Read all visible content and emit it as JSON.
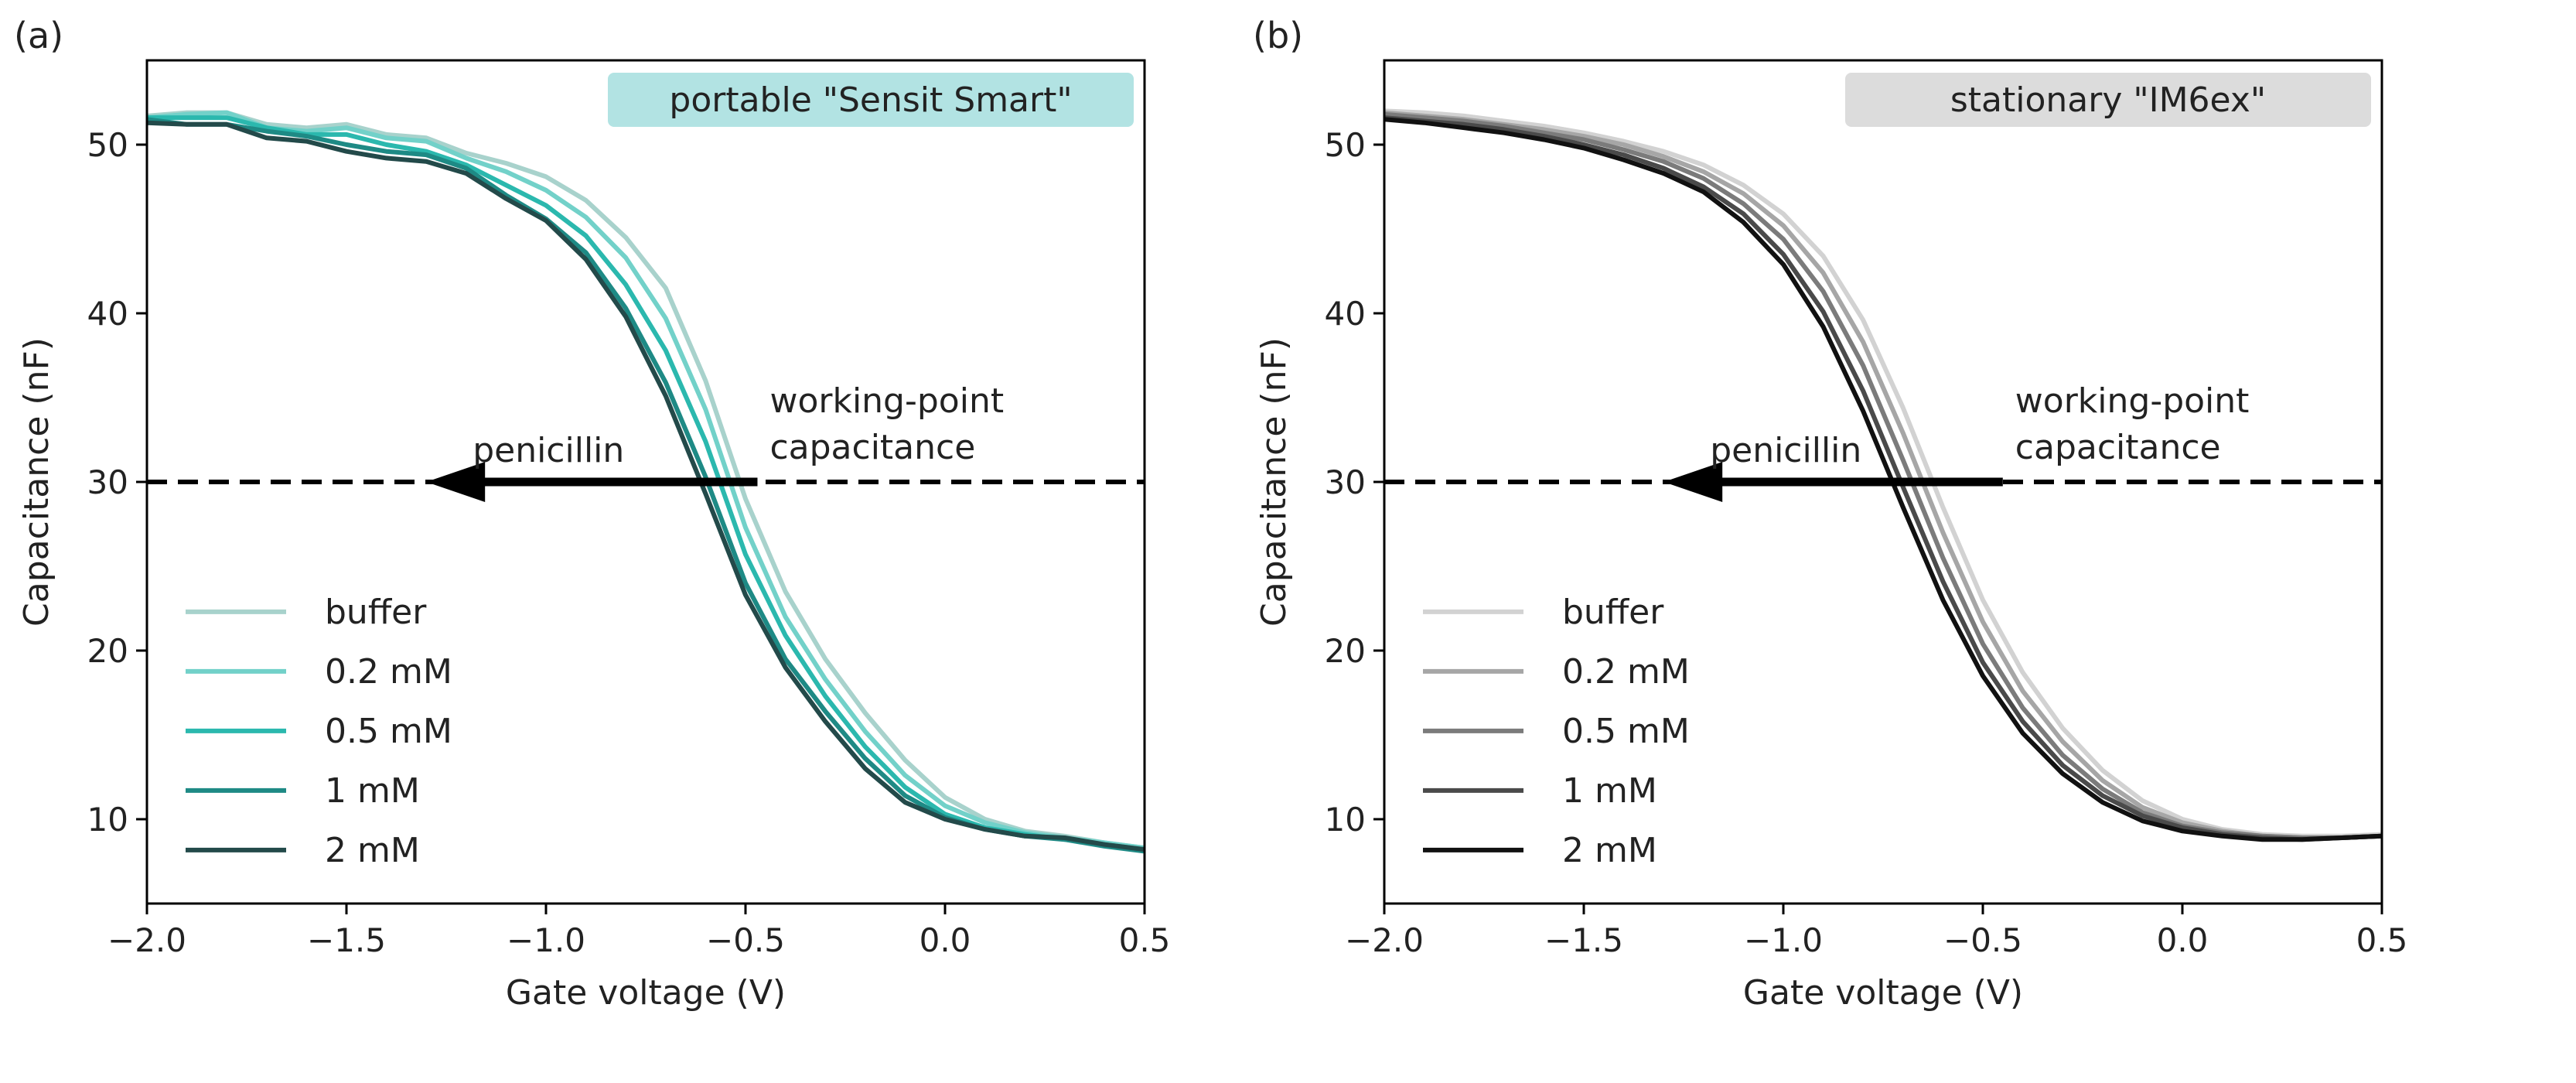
{
  "chart_data": [
    {
      "type": "line",
      "panel_label": "(a)",
      "badge": "portable \"Sensit Smart\"",
      "badge_color": "#b2e3e3",
      "xlabel": "Gate voltage (V)",
      "ylabel": "Capacitance (nF)",
      "xlim": [
        -2.0,
        0.5
      ],
      "ylim": [
        5,
        55
      ],
      "x_ticks": [
        -2.0,
        -1.5,
        -1.0,
        -0.5,
        0.0,
        0.5
      ],
      "x_tick_labels": [
        "−2.0",
        "−1.5",
        "−1.0",
        "−0.5",
        "0.0",
        "0.5"
      ],
      "y_ticks": [
        10,
        20,
        30,
        40,
        50
      ],
      "y_tick_labels": [
        "10",
        "20",
        "30",
        "40",
        "50"
      ],
      "working_point": 30,
      "annotations": {
        "left": "penicillin",
        "right_line1": "working-point",
        "right_line2": "capacitance"
      },
      "arrow": {
        "from_x": -0.47,
        "to_x": -1.3,
        "y": 30
      },
      "legend_position": "lower-left",
      "x": [
        -2.0,
        -1.9,
        -1.8,
        -1.7,
        -1.6,
        -1.5,
        -1.4,
        -1.3,
        -1.2,
        -1.1,
        -1.0,
        -0.9,
        -0.8,
        -0.7,
        -0.6,
        -0.5,
        -0.4,
        -0.3,
        -0.2,
        -0.1,
        0.0,
        0.1,
        0.2,
        0.3,
        0.4,
        0.5
      ],
      "series": [
        {
          "name": "buffer",
          "color": "#a8d2cc",
          "values": [
            51.7,
            51.9,
            51.9,
            51.2,
            51.0,
            51.2,
            50.6,
            50.4,
            49.5,
            48.9,
            48.1,
            46.7,
            44.5,
            41.5,
            36.0,
            29.0,
            23.5,
            19.5,
            16.3,
            13.5,
            11.3,
            10.0,
            9.3,
            9.0,
            8.6,
            8.3
          ]
        },
        {
          "name": "0.2 mM",
          "color": "#72d1c9",
          "values": [
            51.6,
            51.8,
            51.9,
            51.0,
            50.8,
            51.0,
            50.4,
            50.2,
            49.2,
            48.4,
            47.3,
            45.7,
            43.3,
            39.7,
            34.3,
            27.3,
            22.0,
            18.3,
            15.2,
            12.6,
            10.8,
            9.8,
            9.2,
            8.9,
            8.6,
            8.3
          ]
        },
        {
          "name": "0.5 mM",
          "color": "#2bb8ae",
          "values": [
            51.6,
            51.6,
            51.6,
            51.0,
            50.6,
            50.6,
            50.0,
            49.6,
            48.8,
            47.6,
            46.4,
            44.6,
            41.7,
            37.8,
            32.4,
            25.7,
            20.9,
            17.3,
            14.3,
            11.9,
            10.3,
            9.5,
            9.1,
            8.8,
            8.5,
            8.2
          ]
        },
        {
          "name": "1 mM",
          "color": "#1e8a85",
          "values": [
            51.5,
            51.2,
            51.2,
            50.8,
            50.5,
            50.0,
            49.6,
            49.4,
            48.6,
            47.0,
            45.6,
            43.6,
            40.3,
            35.9,
            30.3,
            24.0,
            19.5,
            16.4,
            13.6,
            11.4,
            10.1,
            9.4,
            9.0,
            8.8,
            8.4,
            8.1
          ]
        },
        {
          "name": "2 mM",
          "color": "#234a4a",
          "values": [
            51.3,
            51.2,
            51.2,
            50.4,
            50.2,
            49.6,
            49.2,
            49.0,
            48.3,
            46.8,
            45.5,
            43.2,
            39.8,
            35.1,
            29.3,
            23.3,
            19.0,
            15.8,
            13.0,
            11.0,
            10.0,
            9.4,
            9.0,
            8.9,
            8.5,
            8.2
          ]
        }
      ]
    },
    {
      "type": "line",
      "panel_label": "(b)",
      "badge": "stationary \"IM6ex\"",
      "badge_color": "#dcdcdc",
      "xlabel": "Gate voltage (V)",
      "ylabel": "Capacitance (nF)",
      "xlim": [
        -2.0,
        0.5
      ],
      "ylim": [
        5,
        55
      ],
      "x_ticks": [
        -2.0,
        -1.5,
        -1.0,
        -0.5,
        0.0,
        0.5
      ],
      "x_tick_labels": [
        "−2.0",
        "−1.5",
        "−1.0",
        "−0.5",
        "0.0",
        "0.5"
      ],
      "y_ticks": [
        10,
        20,
        30,
        40,
        50
      ],
      "y_tick_labels": [
        "10",
        "20",
        "30",
        "40",
        "50"
      ],
      "working_point": 30,
      "annotations": {
        "left": "penicillin",
        "right_line1": "working-point",
        "right_line2": "capacitance"
      },
      "arrow": {
        "from_x": -0.45,
        "to_x": -1.3,
        "y": 30
      },
      "legend_position": "lower-left",
      "x": [
        -2.0,
        -1.9,
        -1.8,
        -1.7,
        -1.6,
        -1.5,
        -1.4,
        -1.3,
        -1.2,
        -1.1,
        -1.0,
        -0.9,
        -0.8,
        -0.7,
        -0.6,
        -0.5,
        -0.4,
        -0.3,
        -0.2,
        -0.1,
        0.0,
        0.1,
        0.2,
        0.3,
        0.4,
        0.5
      ],
      "series": [
        {
          "name": "buffer",
          "color": "#d2d2d2",
          "values": [
            52.0,
            51.9,
            51.7,
            51.4,
            51.1,
            50.7,
            50.2,
            49.6,
            48.8,
            47.6,
            45.9,
            43.4,
            39.6,
            34.4,
            28.5,
            23.0,
            18.7,
            15.4,
            12.9,
            11.1,
            10.0,
            9.4,
            9.1,
            9.0,
            9.0,
            9.1
          ]
        },
        {
          "name": "0.2 mM",
          "color": "#a6a6a6",
          "values": [
            51.9,
            51.7,
            51.5,
            51.2,
            50.9,
            50.5,
            50.0,
            49.3,
            48.4,
            47.1,
            45.2,
            42.4,
            38.3,
            32.9,
            27.0,
            21.7,
            17.6,
            14.6,
            12.3,
            10.7,
            9.8,
            9.3,
            9.0,
            8.9,
            8.9,
            9.0
          ]
        },
        {
          "name": "0.5 mM",
          "color": "#7b7b7b",
          "values": [
            51.8,
            51.6,
            51.4,
            51.1,
            50.7,
            50.3,
            49.7,
            49.0,
            48.0,
            46.5,
            44.4,
            41.3,
            36.9,
            31.3,
            25.5,
            20.4,
            16.6,
            13.8,
            11.8,
            10.4,
            9.6,
            9.2,
            9.0,
            8.9,
            8.9,
            9.0
          ]
        },
        {
          "name": "1 mM",
          "color": "#4a4a4a",
          "values": [
            51.6,
            51.4,
            51.2,
            50.9,
            50.5,
            50.0,
            49.4,
            48.6,
            47.5,
            45.9,
            43.5,
            40.1,
            35.4,
            29.7,
            24.1,
            19.3,
            15.8,
            13.2,
            11.4,
            10.2,
            9.5,
            9.1,
            8.9,
            8.8,
            8.9,
            9.0
          ]
        },
        {
          "name": "2 mM",
          "color": "#111111",
          "values": [
            51.5,
            51.3,
            51.0,
            50.7,
            50.3,
            49.8,
            49.1,
            48.3,
            47.2,
            45.4,
            42.9,
            39.2,
            34.2,
            28.5,
            23.0,
            18.5,
            15.1,
            12.7,
            11.0,
            9.9,
            9.3,
            9.0,
            8.8,
            8.8,
            8.9,
            9.0
          ]
        }
      ]
    }
  ]
}
